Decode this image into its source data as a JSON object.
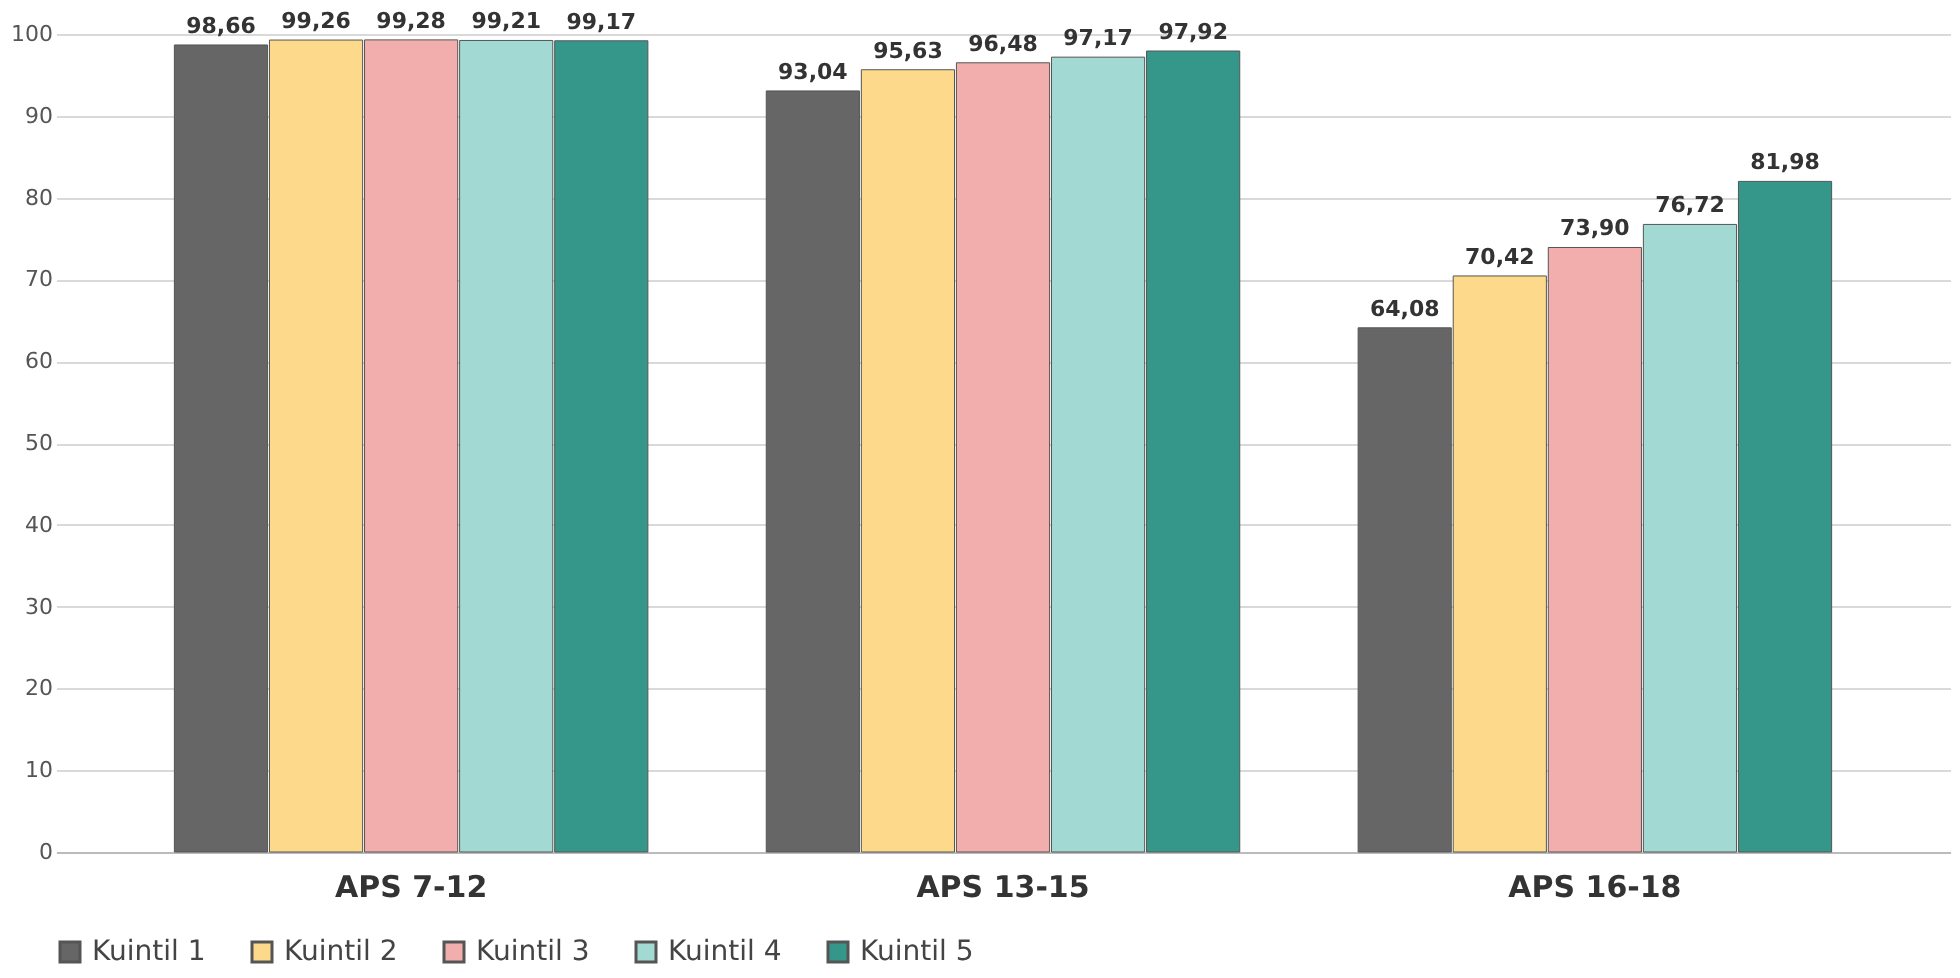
{
  "chart_data": {
    "type": "bar",
    "categories": [
      "APS 7-12",
      "APS 13-15",
      "APS 16-18"
    ],
    "series": [
      {
        "name": "Kuintil 1",
        "color": "#666666",
        "values": [
          98.66,
          93.04,
          64.08
        ],
        "value_labels": [
          "98,66",
          "93,04",
          "64,08"
        ]
      },
      {
        "name": "Kuintil 2",
        "color": "#fdd98c",
        "values": [
          99.26,
          95.63,
          70.42
        ],
        "value_labels": [
          "99,26",
          "95,63",
          "70,42"
        ]
      },
      {
        "name": "Kuintil 3",
        "color": "#f2aeac",
        "values": [
          99.28,
          96.48,
          73.9
        ],
        "value_labels": [
          "99,28",
          "96,48",
          "73,90"
        ]
      },
      {
        "name": "Kuintil 4",
        "color": "#a2d9d3",
        "values": [
          99.21,
          97.17,
          76.72
        ],
        "value_labels": [
          "99,21",
          "97,17",
          "76,72"
        ]
      },
      {
        "name": "Kuintil 5",
        "color": "#35978a",
        "values": [
          99.17,
          97.92,
          81.98
        ],
        "value_labels": [
          "99,17",
          "97,92",
          "81,98"
        ]
      }
    ],
    "ylim": [
      0,
      100
    ],
    "yticks": [
      0,
      10,
      20,
      30,
      40,
      50,
      60,
      70,
      80,
      90,
      100
    ],
    "grid": "y",
    "legend": "bottom"
  }
}
